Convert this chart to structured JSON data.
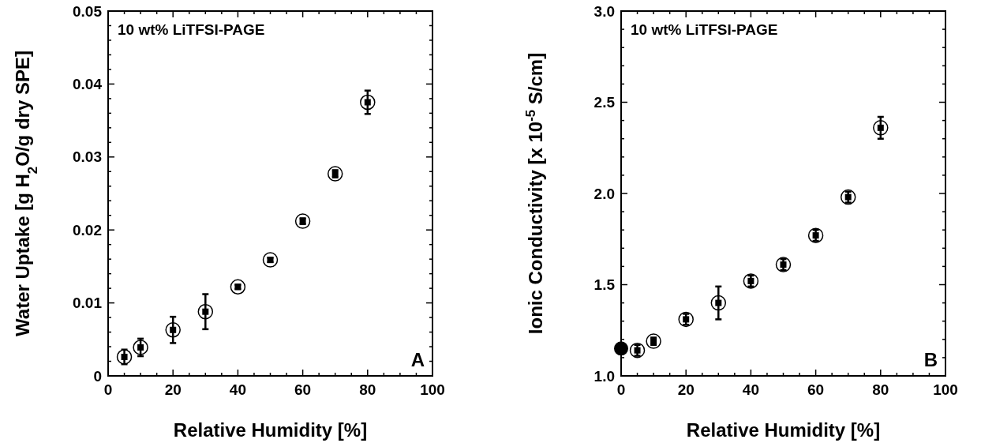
{
  "chart_data": [
    {
      "type": "scatter",
      "xlabel": "Relative Humidity [%]",
      "ylabel": "Water Uptake [g H$_{2}$O/g dry SPE]",
      "annotations": [
        "10 wt% LiTFSI-PAGE",
        "A"
      ],
      "xlim": [
        0,
        100
      ],
      "ylim": [
        0,
        0.05
      ],
      "xticks": [
        0,
        {
          "value": 5,
          "label": null
        },
        {
          "value": 10,
          "label": null
        },
        {
          "value": 15,
          "label": null
        },
        20,
        {
          "value": 25,
          "label": null
        },
        {
          "value": 30,
          "label": null
        },
        {
          "value": 35,
          "label": null
        },
        40,
        {
          "value": 45,
          "label": null
        },
        {
          "value": 50,
          "label": null
        },
        {
          "value": 55,
          "label": null
        },
        60,
        {
          "value": 65,
          "label": null
        },
        {
          "value": 70,
          "label": null
        },
        {
          "value": 75,
          "label": null
        },
        80,
        {
          "value": 85,
          "label": null
        },
        {
          "value": 90,
          "label": null
        },
        {
          "value": 95,
          "label": null
        },
        100
      ],
      "yticks": [
        0,
        {
          "value": 0.002,
          "label": null
        },
        {
          "value": 0.004,
          "label": null
        },
        {
          "value": 0.006,
          "label": null
        },
        {
          "value": 0.008,
          "label": null
        },
        0.01,
        {
          "value": 0.012,
          "label": null
        },
        {
          "value": 0.014,
          "label": null
        },
        {
          "value": 0.016,
          "label": null
        },
        {
          "value": 0.018,
          "label": null
        },
        0.02,
        {
          "value": 0.022,
          "label": null
        },
        {
          "value": 0.024,
          "label": null
        },
        {
          "value": 0.026,
          "label": null
        },
        {
          "value": 0.028,
          "label": null
        },
        0.03,
        {
          "value": 0.032,
          "label": null
        },
        {
          "value": 0.034,
          "label": null
        },
        {
          "value": 0.036,
          "label": null
        },
        {
          "value": 0.038,
          "label": null
        },
        0.04,
        {
          "value": 0.042,
          "label": null
        },
        {
          "value": 0.044,
          "label": null
        },
        {
          "value": 0.046,
          "label": null
        },
        {
          "value": 0.048,
          "label": null
        },
        0.05
      ],
      "grid": false,
      "marker": "circle",
      "series": [
        {
          "color": "#000000",
          "x": [
            5,
            10,
            20,
            30,
            40,
            50,
            60,
            70,
            80
          ],
          "values": [
            0.0026,
            0.0039,
            0.0063,
            0.0088,
            0.0122,
            0.0159,
            0.0212,
            0.0277,
            0.0375
          ],
          "errors": [
            0.001,
            0.0012,
            0.0018,
            0.0024,
            0.0003,
            0.0003,
            0.0004,
            0.0005,
            0.0016
          ]
        }
      ]
    },
    {
      "type": "scatter",
      "xlabel": "Relative Humidity [%]",
      "ylabel": "Ionic Conductivity [x 10$^{-5}$ S/cm]",
      "annotations": [
        "10 wt% LiTFSI-PAGE",
        "B"
      ],
      "xlim": [
        0,
        100
      ],
      "ylim": [
        1,
        3
      ],
      "xticks": [
        0,
        {
          "value": 5,
          "label": null
        },
        {
          "value": 10,
          "label": null
        },
        {
          "value": 15,
          "label": null
        },
        20,
        {
          "value": 25,
          "label": null
        },
        {
          "value": 30,
          "label": null
        },
        {
          "value": 35,
          "label": null
        },
        40,
        {
          "value": 45,
          "label": null
        },
        {
          "value": 50,
          "label": null
        },
        {
          "value": 55,
          "label": null
        },
        60,
        {
          "value": 65,
          "label": null
        },
        {
          "value": 70,
          "label": null
        },
        {
          "value": 75,
          "label": null
        },
        80,
        {
          "value": 85,
          "label": null
        },
        {
          "value": 90,
          "label": null
        },
        {
          "value": 95,
          "label": null
        },
        100
      ],
      "yticks": [
        {
          "value": 1,
          "label": "1.0"
        },
        {
          "value": 1.1,
          "label": null
        },
        {
          "value": 1.2,
          "label": null
        },
        {
          "value": 1.3,
          "label": null
        },
        {
          "value": 1.4,
          "label": null
        },
        1.5,
        {
          "value": 1.6,
          "label": null
        },
        {
          "value": 1.7,
          "label": null
        },
        {
          "value": 1.8,
          "label": null
        },
        {
          "value": 1.9,
          "label": null
        },
        {
          "value": 2,
          "label": "2.0"
        },
        {
          "value": 2.1,
          "label": null
        },
        {
          "value": 2.2,
          "label": null
        },
        {
          "value": 2.3,
          "label": null
        },
        {
          "value": 2.4,
          "label": null
        },
        2.5,
        {
          "value": 2.6,
          "label": null
        },
        {
          "value": 2.7,
          "label": null
        },
        {
          "value": 2.8,
          "label": null
        },
        {
          "value": 2.9,
          "label": null
        },
        {
          "value": 3,
          "label": "3.0"
        }
      ],
      "grid": false,
      "marker": "circle",
      "series": [
        {
          "color": "#000000",
          "x": [
            5,
            10,
            20,
            30,
            40,
            50,
            60,
            70,
            80
          ],
          "values": [
            1.14,
            1.19,
            1.31,
            1.4,
            1.52,
            1.61,
            1.77,
            1.98,
            2.36
          ],
          "errors": [
            0.03,
            0.02,
            0.03,
            0.09,
            0.03,
            0.03,
            0.03,
            0.03,
            0.06
          ]
        },
        {
          "color": "#000000",
          "x": [
            0
          ],
          "values": [
            1.15
          ]
        }
      ]
    }
  ]
}
